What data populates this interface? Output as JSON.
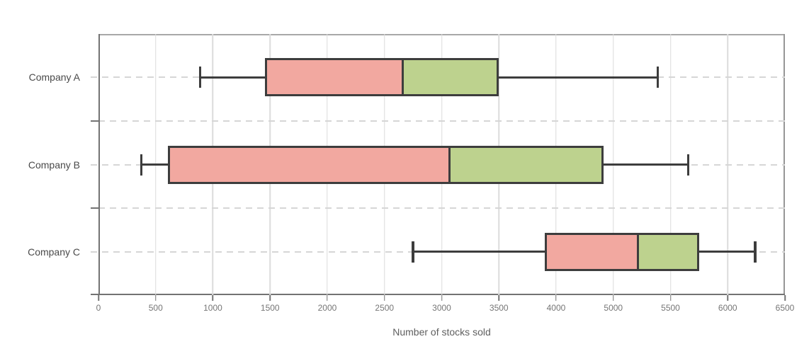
{
  "figure": {
    "x_axis_title": "Number of stocks sold"
  },
  "chart_data": {
    "type": "boxplot",
    "orientation": "horizontal",
    "title": "",
    "xlabel": "Number of stocks sold",
    "ylabel": "",
    "categories": [
      "Company A",
      "Company B",
      "Company C"
    ],
    "x_tick_labels": [
      "0",
      "500",
      "1000",
      "1500",
      "2000",
      "2500",
      "3000",
      "3500",
      "4000",
      "5000",
      "5500",
      "6000",
      "6500"
    ],
    "x_ticks": [
      0,
      500,
      1000,
      1500,
      2000,
      2500,
      3000,
      3500,
      4000,
      5000,
      5500,
      6000,
      6500
    ],
    "grid": true,
    "legend": false,
    "series": [
      {
        "name": "Company A",
        "min": 890,
        "q1": 1455,
        "median": 2670,
        "q3": 3500,
        "max": 5390
      },
      {
        "name": "Company B",
        "min": 375,
        "q1": 605,
        "median": 3080,
        "q3": 4825,
        "max": 5655
      },
      {
        "name": "Company C",
        "min": 2750,
        "q1": 3900,
        "median": 5230,
        "q3": 5750,
        "max": 6240
      }
    ],
    "colors": {
      "box_lower_fill": "#f2a8a0",
      "box_upper_fill": "#bdd28e",
      "box_line": "#3d3d3d",
      "grid_line": "#dcdcdc",
      "dash_line": "#d6d6d6",
      "axis_line": "#737373",
      "frame_top": "#a8a8a8",
      "frame_right": "#969696",
      "tick_label": "#767676",
      "category_label": "#4a4a4a",
      "axis_title": "#5f5f5f"
    }
  }
}
